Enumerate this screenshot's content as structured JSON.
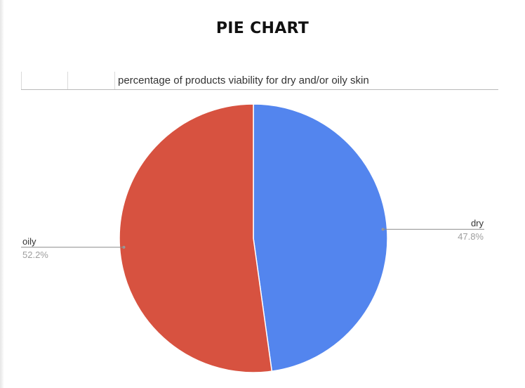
{
  "page": {
    "title": "PIE CHART"
  },
  "chart_data": {
    "type": "pie",
    "title": "percentage of products viability for dry and/or oily skin",
    "legend": "labels-outside",
    "slices": [
      {
        "label": "dry",
        "value": 47.8,
        "value_label": "47.8%",
        "color": "#5385ee"
      },
      {
        "label": "oily",
        "value": 52.2,
        "value_label": "52.2%",
        "color": "#d75240"
      }
    ]
  }
}
